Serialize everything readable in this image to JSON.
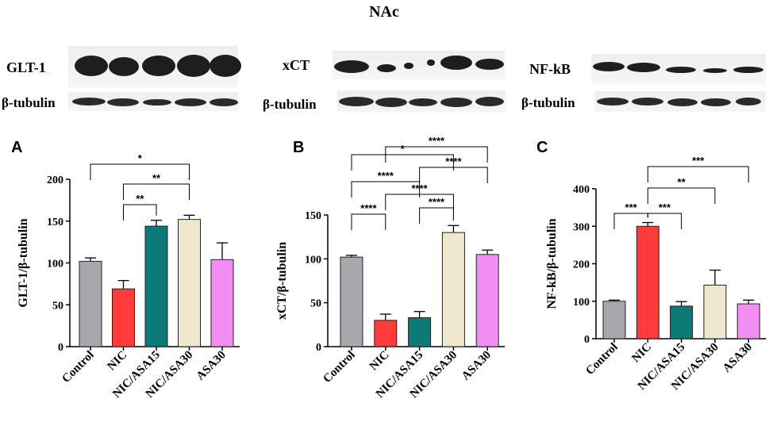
{
  "title": "NAc",
  "blots": [
    {
      "protein": "GLT-1",
      "loading": "β-tubulin"
    },
    {
      "protein": "xCT",
      "loading": "β-tubulin"
    },
    {
      "protein": "NF-kB",
      "loading": "β-tubulin"
    }
  ],
  "colors": {
    "Control": "#a9a7ad",
    "NIC": "#ff3b3b",
    "NIC/ASA15": "#0d7a78",
    "NIC/ASA30": "#efe8cf",
    "ASA30": "#f28ef2"
  },
  "chart_data": [
    {
      "type": "bar",
      "panel": "A",
      "categories": [
        "Control",
        "NIC",
        "NIC/ASA15",
        "NIC/ASA30",
        "ASA30"
      ],
      "values": [
        102,
        69,
        144,
        152,
        104
      ],
      "errors": [
        4,
        10,
        7,
        5,
        20
      ],
      "ylabel": "GLT-1/β-tubulin",
      "ylim": [
        0,
        200
      ],
      "yticks": [
        0,
        50,
        100,
        150,
        200
      ],
      "significance": [
        {
          "from": "NIC",
          "to": "NIC/ASA15",
          "label": "**"
        },
        {
          "from": "NIC",
          "to": "NIC/ASA30",
          "label": "**"
        },
        {
          "from": "Control",
          "to": "NIC/ASA30",
          "label": "*"
        }
      ]
    },
    {
      "type": "bar",
      "panel": "B",
      "categories": [
        "Control",
        "NIC",
        "NIC/ASA15",
        "NIC/ASA30",
        "ASA30"
      ],
      "values": [
        102,
        30,
        33,
        130,
        105
      ],
      "errors": [
        2,
        7,
        7,
        8,
        5
      ],
      "ylabel": "xCT/β-tubulin",
      "ylim": [
        0,
        150
      ],
      "yticks": [
        0,
        50,
        100,
        150
      ],
      "significance": [
        {
          "from": "Control",
          "to": "NIC",
          "label": "****"
        },
        {
          "from": "NIC/ASA15",
          "to": "NIC/ASA30",
          "label": "****"
        },
        {
          "from": "NIC",
          "to": "NIC/ASA30",
          "label": "****"
        },
        {
          "from": "Control",
          "to": "NIC/ASA15",
          "label": "****"
        },
        {
          "from": "NIC/ASA15",
          "to": "ASA30",
          "label": "****"
        },
        {
          "from": "Control",
          "to": "NIC/ASA30",
          "label": "*"
        },
        {
          "from": "NIC",
          "to": "ASA30",
          "label": "****"
        }
      ]
    },
    {
      "type": "bar",
      "panel": "C",
      "categories": [
        "Control",
        "NIC",
        "NIC/ASA15",
        "NIC/ASA30",
        "ASA30"
      ],
      "values": [
        100,
        300,
        87,
        143,
        93
      ],
      "errors": [
        3,
        10,
        12,
        40,
        10
      ],
      "ylabel": "NF-kB/β-tubulin",
      "ylim": [
        0,
        400
      ],
      "yticks": [
        0,
        100,
        200,
        300,
        400
      ],
      "significance": [
        {
          "from": "Control",
          "to": "NIC",
          "label": "***"
        },
        {
          "from": "NIC",
          "to": "NIC/ASA15",
          "label": "***"
        },
        {
          "from": "NIC",
          "to": "NIC/ASA30",
          "label": "**"
        },
        {
          "from": "NIC",
          "to": "ASA30",
          "label": "***"
        }
      ]
    }
  ]
}
